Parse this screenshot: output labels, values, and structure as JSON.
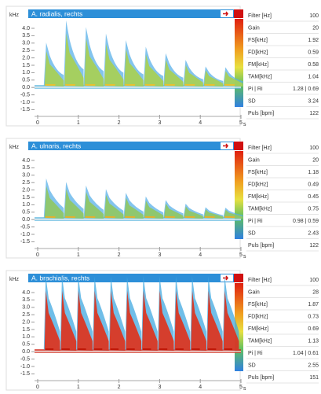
{
  "y_unit": "kHz",
  "x_unit": "s",
  "y_ticks": [
    "4.0",
    "3.5",
    "3.0",
    "2.5",
    "2.0",
    "1.5",
    "1.0",
    "0.5",
    "0.0",
    "-0.5",
    "-1.0",
    "-1.5"
  ],
  "x_ticks": [
    "0",
    "1",
    "2",
    "3",
    "4",
    "5"
  ],
  "panels": [
    {
      "title": "A. radialis, rechts",
      "params": [
        [
          "Filter [Hz]",
          "100"
        ],
        [
          "Gain",
          "20"
        ],
        [
          "FS[kHz]",
          "1.92"
        ],
        [
          "FD[kHz]",
          "0.59"
        ],
        [
          "FM[kHz]",
          "0.58"
        ],
        [
          "TAM[kHz]",
          "1.04"
        ],
        [
          "Pi | Ri",
          "1.28 | 0.69"
        ],
        [
          "SD",
          "3.24"
        ],
        [
          "Puls [bpm]",
          "122"
        ]
      ]
    },
    {
      "title": "A. ulnaris, rechts",
      "params": [
        [
          "Filter [Hz]",
          "100"
        ],
        [
          "Gain",
          "20"
        ],
        [
          "FS[kHz]",
          "1.18"
        ],
        [
          "FD[kHz]",
          "0.49"
        ],
        [
          "FM[kHz]",
          "0.45"
        ],
        [
          "TAM[kHz]",
          "0.75"
        ],
        [
          "Pi | Ri",
          "0.98 | 0.59"
        ],
        [
          "SD",
          "2.43"
        ],
        [
          "Puls [bpm]",
          "122"
        ]
      ]
    },
    {
      "title": "A. brachialis, rechts",
      "params": [
        [
          "Filter [Hz]",
          "100"
        ],
        [
          "Gain",
          "28"
        ],
        [
          "FS[kHz]",
          "1.87"
        ],
        [
          "FD[kHz]",
          "0.73"
        ],
        [
          "FM[kHz]",
          "0.69"
        ],
        [
          "TAM[kHz]",
          "1.13"
        ],
        [
          "Pi | Ri",
          "1.04 | 0.61"
        ],
        [
          "SD",
          "2.55"
        ],
        [
          "Puls [bpm]",
          "151"
        ]
      ]
    }
  ]
}
